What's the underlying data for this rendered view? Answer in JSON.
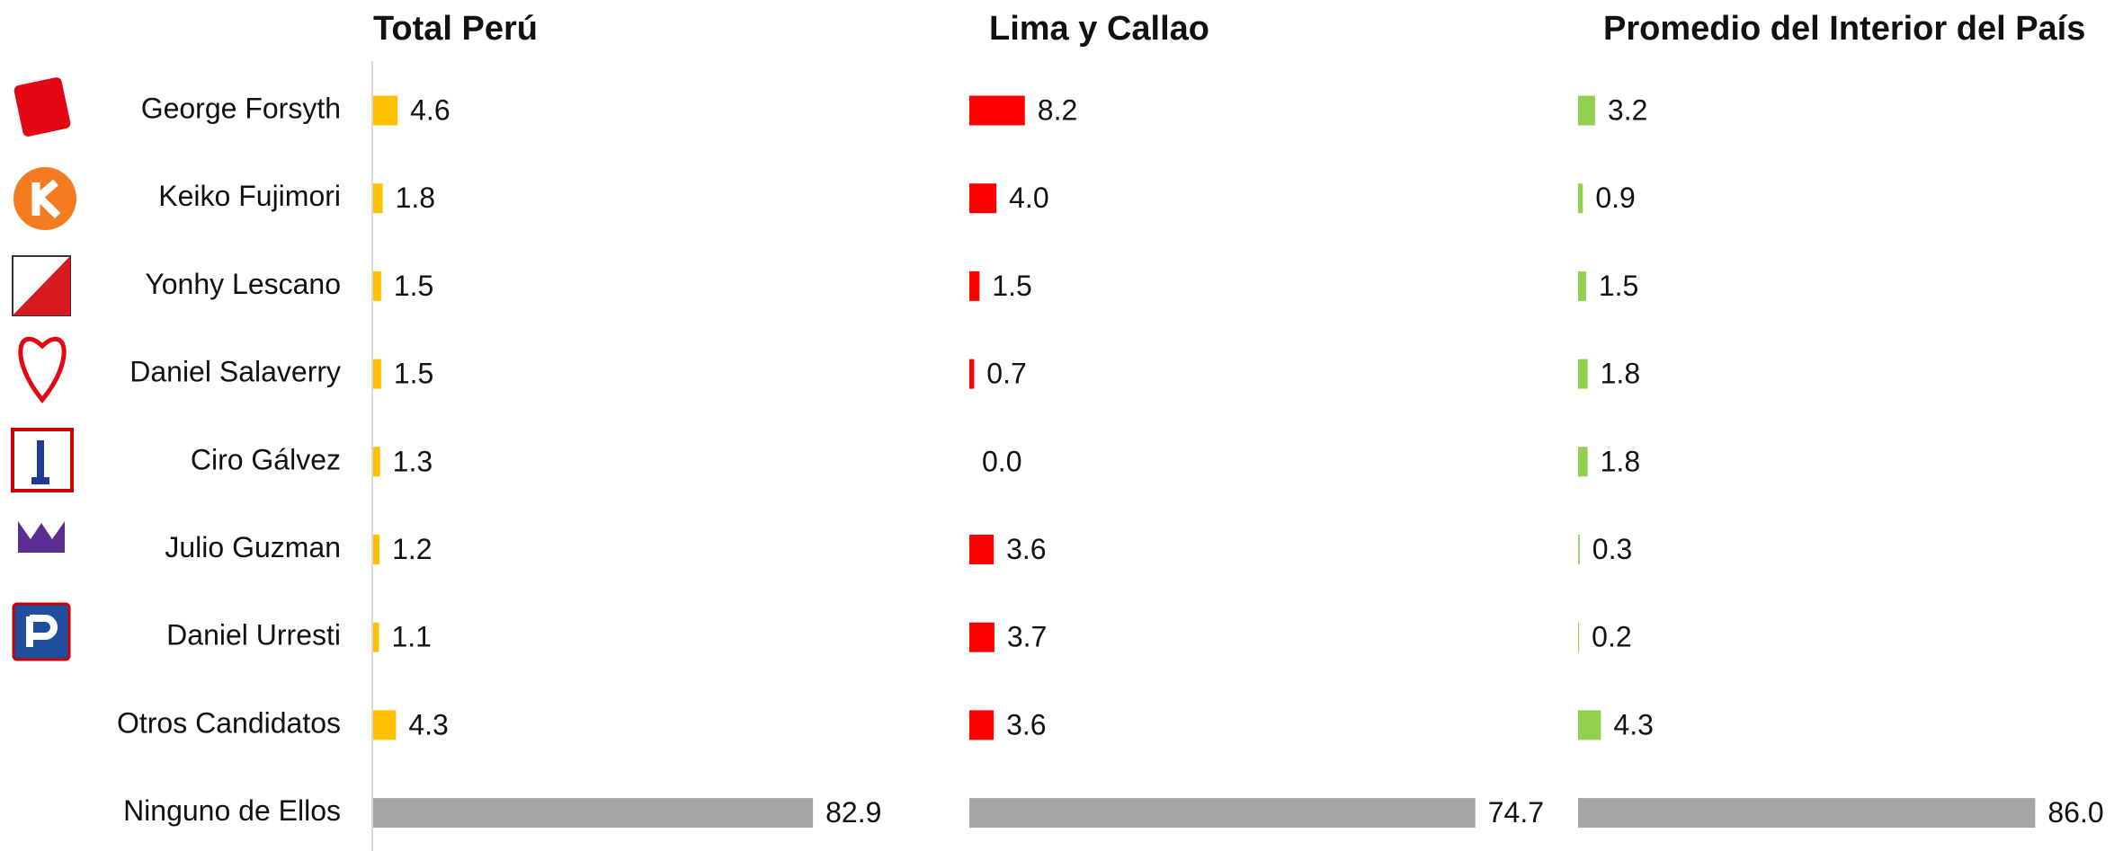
{
  "chart_data": [
    {
      "type": "bar",
      "orientation": "horizontal",
      "title": "Total Perú",
      "categories": [
        "George Forsyth",
        "Keiko Fujimori",
        "Yonhy Lescano",
        "Daniel Salaverry",
        "Ciro Gálvez",
        "Julio Guzman",
        "Daniel Urresti",
        "Otros Candidatos",
        "Ninguno de Ellos"
      ],
      "values": [
        4.6,
        1.8,
        1.5,
        1.5,
        1.3,
        1.2,
        1.1,
        4.3,
        82.9
      ],
      "value_labels": [
        "4.6",
        "1.8",
        "1.5",
        "1.5",
        "1.3",
        "1.2",
        "1.1",
        "4.3",
        "82.9"
      ],
      "colors": [
        "#ffc000",
        "#ffc000",
        "#ffc000",
        "#ffc000",
        "#ffc000",
        "#ffc000",
        "#ffc000",
        "#ffc000",
        "#a6a6a6"
      ],
      "xlim": [
        0,
        90
      ]
    },
    {
      "type": "bar",
      "orientation": "horizontal",
      "title": "Lima y Callao",
      "values": [
        8.2,
        4.0,
        1.5,
        0.7,
        0.0,
        3.6,
        3.7,
        3.6,
        74.7
      ],
      "value_labels": [
        "8.2",
        "4.0",
        "1.5",
        "0.7",
        "0.0",
        "3.6",
        "3.7",
        "3.6",
        "74.7"
      ],
      "colors": [
        "#ff0000",
        "#ff0000",
        "#ff0000",
        "#ff0000",
        "#ff0000",
        "#ff0000",
        "#ff0000",
        "#ff0000",
        "#a6a6a6"
      ],
      "xlim": [
        0,
        90
      ]
    },
    {
      "type": "bar",
      "orientation": "horizontal",
      "title": "Promedio del Interior del País",
      "values": [
        3.2,
        0.9,
        1.5,
        1.8,
        1.8,
        0.3,
        0.2,
        4.3,
        86.0
      ],
      "value_labels": [
        "3.2",
        "0.9",
        "1.5",
        "1.8",
        "1.8",
        "0.3",
        "0.2",
        "4.3",
        "86.0"
      ],
      "colors": [
        "#92d050",
        "#92d050",
        "#92d050",
        "#92d050",
        "#92d050",
        "#92d050",
        "#92d050",
        "#92d050",
        "#a6a6a6"
      ],
      "xlim": [
        0,
        90
      ]
    }
  ]
}
